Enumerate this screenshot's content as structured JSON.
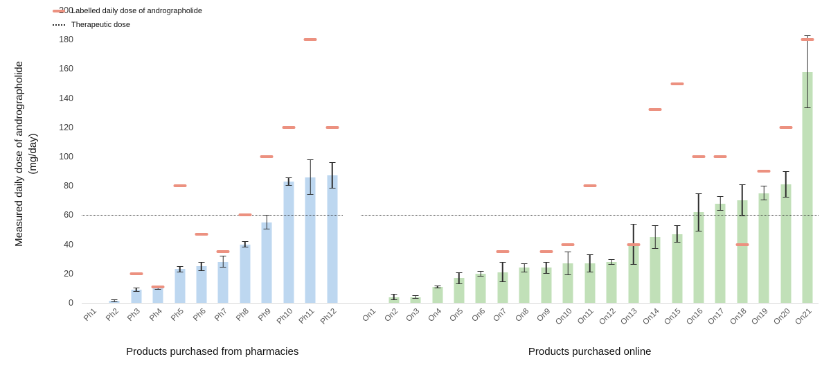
{
  "chart_data": {
    "type": "bar",
    "ylabel": "Measured daily dose of andrographolide\n(mg/day)",
    "ylim": [
      0,
      200
    ],
    "yticks": [
      0,
      20,
      40,
      60,
      80,
      100,
      120,
      140,
      160,
      180,
      200
    ],
    "therapeutic_dose": 60,
    "grid": false,
    "legend_position": "top-left",
    "legend": [
      {
        "label": "Labelled daily dose of andrographolide",
        "style": "dash",
        "color": "#ec9180"
      },
      {
        "label": "Therapeutic dose",
        "style": "dotted",
        "color": "#2a2a2a"
      }
    ],
    "groups": [
      {
        "id": "pharmacy",
        "xlabel": "Products purchased from pharmacies",
        "bar_color": "#bdd7f0",
        "bars": [
          {
            "label": "Ph1",
            "value": 0,
            "err": 0,
            "labelled": null
          },
          {
            "label": "Ph2",
            "value": 1.5,
            "err": 1,
            "labelled": null
          },
          {
            "label": "Ph3",
            "value": 9,
            "err": 1.5,
            "labelled": 20
          },
          {
            "label": "Ph4",
            "value": 10,
            "err": 1,
            "labelled": 11
          },
          {
            "label": "Ph5",
            "value": 23,
            "err": 2,
            "labelled": 80
          },
          {
            "label": "Ph6",
            "value": 25,
            "err": 3,
            "labelled": 47
          },
          {
            "label": "Ph7",
            "value": 28,
            "err": 4,
            "labelled": 35
          },
          {
            "label": "Ph8",
            "value": 40,
            "err": 2,
            "labelled": 60
          },
          {
            "label": "Ph9",
            "value": 55,
            "err": 5,
            "labelled": 100
          },
          {
            "label": "Ph10",
            "value": 83,
            "err": 3,
            "labelled": 120
          },
          {
            "label": "Ph11",
            "value": 86,
            "err": 12,
            "labelled": 180
          },
          {
            "label": "Ph12",
            "value": 87,
            "err": 9,
            "labelled": 120
          }
        ]
      },
      {
        "id": "online",
        "xlabel": "Products purchased online",
        "bar_color": "#c1e0b8",
        "bars": [
          {
            "label": "On1",
            "value": 0,
            "err": 0,
            "labelled": null
          },
          {
            "label": "On2",
            "value": 4,
            "err": 2,
            "labelled": null
          },
          {
            "label": "On3",
            "value": 4,
            "err": 1,
            "labelled": null
          },
          {
            "label": "On4",
            "value": 11,
            "err": 1,
            "labelled": null
          },
          {
            "label": "On5",
            "value": 17,
            "err": 4,
            "labelled": null
          },
          {
            "label": "On6",
            "value": 20,
            "err": 2,
            "labelled": null
          },
          {
            "label": "On7",
            "value": 21,
            "err": 7,
            "labelled": 35
          },
          {
            "label": "On8",
            "value": 24,
            "err": 3,
            "labelled": null
          },
          {
            "label": "On9",
            "value": 24,
            "err": 4,
            "labelled": 35
          },
          {
            "label": "On10",
            "value": 27,
            "err": 8,
            "labelled": 40
          },
          {
            "label": "On11",
            "value": 27,
            "err": 6,
            "labelled": 80
          },
          {
            "label": "On12",
            "value": 28,
            "err": 2,
            "labelled": null
          },
          {
            "label": "On13",
            "value": 40,
            "err": 14,
            "labelled": 40
          },
          {
            "label": "On14",
            "value": 45,
            "err": 8,
            "labelled": 132
          },
          {
            "label": "On15",
            "value": 47,
            "err": 6,
            "labelled": 150
          },
          {
            "label": "On16",
            "value": 62,
            "err": 13,
            "labelled": 100
          },
          {
            "label": "On17",
            "value": 68,
            "err": 5,
            "labelled": 100
          },
          {
            "label": "On18",
            "value": 70,
            "err": 11,
            "labelled": 40
          },
          {
            "label": "On19",
            "value": 75,
            "err": 5,
            "labelled": 90
          },
          {
            "label": "On20",
            "value": 81,
            "err": 9,
            "labelled": 120
          },
          {
            "label": "On21",
            "value": 158,
            "err": 25,
            "labelled": 180
          }
        ]
      }
    ]
  }
}
